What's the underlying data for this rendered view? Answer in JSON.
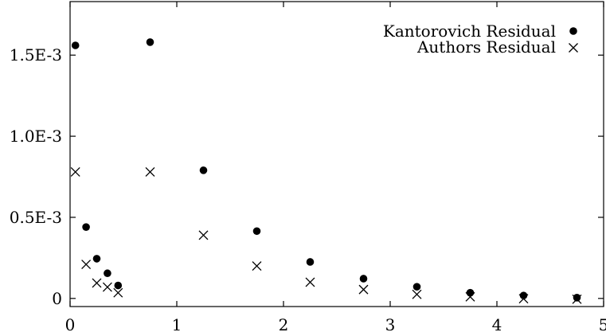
{
  "chart_data": {
    "type": "scatter",
    "title": "",
    "xlabel": "",
    "ylabel": "",
    "xlim": [
      0,
      5
    ],
    "ylim": [
      -5e-05,
      0.00183
    ],
    "grid": false,
    "legend_position": "top-right",
    "x_ticks": [
      {
        "value": 0,
        "label": "0"
      },
      {
        "value": 1,
        "label": "1"
      },
      {
        "value": 2,
        "label": "2"
      },
      {
        "value": 3,
        "label": "3"
      },
      {
        "value": 4,
        "label": "4"
      },
      {
        "value": 5,
        "label": "5"
      }
    ],
    "y_ticks": [
      {
        "value": 0,
        "label": "0"
      },
      {
        "value": 0.0005,
        "label": "0.5E-3"
      },
      {
        "value": 0.001,
        "label": "1.0E-3"
      },
      {
        "value": 0.0015,
        "label": "1.5E-3"
      }
    ],
    "series": [
      {
        "name": "Kantorovich Residual",
        "marker": "dot",
        "color": "#000000",
        "x": [
          0.05,
          0.15,
          0.25,
          0.35,
          0.45,
          0.75,
          1.25,
          1.75,
          2.25,
          2.75,
          3.25,
          3.75,
          4.25,
          4.75
        ],
        "y": [
          0.00156,
          0.00044,
          0.000245,
          0.000155,
          8e-05,
          0.00158,
          0.00079,
          0.000415,
          0.000225,
          0.000122,
          7.2e-05,
          3.5e-05,
          1.8e-05,
          5e-06
        ]
      },
      {
        "name": "Authors Residual",
        "marker": "cross",
        "color": "#000000",
        "x": [
          0.05,
          0.15,
          0.25,
          0.35,
          0.45,
          0.75,
          1.25,
          1.75,
          2.25,
          2.75,
          3.25,
          3.75,
          4.25,
          4.75
        ],
        "y": [
          0.00078,
          0.00021,
          9.5e-05,
          7e-05,
          3.5e-05,
          0.00078,
          0.00039,
          0.0002,
          0.0001,
          5.5e-05,
          2.5e-05,
          1e-05,
          -2e-06,
          -5e-06
        ]
      }
    ]
  }
}
